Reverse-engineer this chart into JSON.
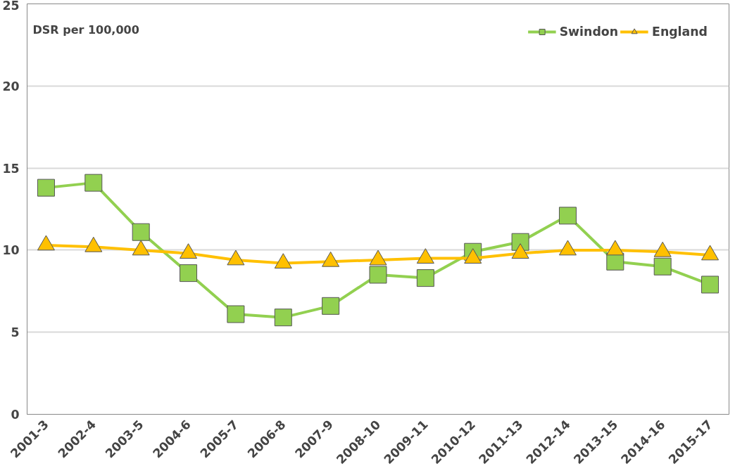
{
  "chart_data": {
    "type": "line",
    "ylabel": "DSR per 100,000",
    "categories": [
      "2001-3",
      "2002-4",
      "2003-5",
      "2004-6",
      "2005-7",
      "2006-8",
      "2007-9",
      "2008-10",
      "2009-11",
      "2010-12",
      "2011-13",
      "2012-14",
      "2013-15",
      "2014-16",
      "2015-17"
    ],
    "series": [
      {
        "name": "Swindon",
        "color": "#92d050",
        "marker": "square",
        "values": [
          13.8,
          14.1,
          11.1,
          8.6,
          6.1,
          5.9,
          6.6,
          8.5,
          8.3,
          9.9,
          10.5,
          12.1,
          9.3,
          9.0,
          7.9
        ]
      },
      {
        "name": "England",
        "color": "#ffc000",
        "marker": "triangle",
        "values": [
          10.3,
          10.2,
          10.0,
          9.8,
          9.4,
          9.2,
          9.3,
          9.4,
          9.5,
          9.5,
          9.8,
          10.0,
          10.0,
          9.9,
          9.7
        ]
      }
    ],
    "ylim": [
      0,
      25
    ],
    "yticks": [
      0,
      5,
      10,
      15,
      20,
      25
    ],
    "grid": "y",
    "legend": "top right"
  }
}
